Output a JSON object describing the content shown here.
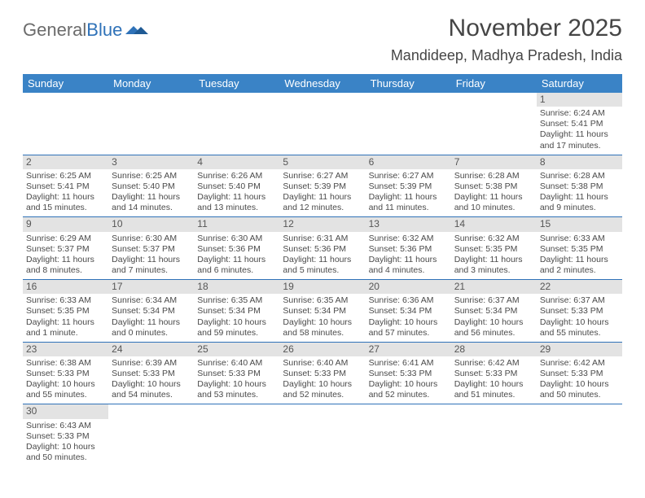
{
  "brand": {
    "first": "General",
    "second": "Blue"
  },
  "title": "November 2025",
  "location": "Mandideep, Madhya Pradesh, India",
  "colors": {
    "header_bg": "#3a83c6",
    "header_text": "#ffffff",
    "cell_border": "#2f72b8",
    "daynum_bg": "#e3e3e3",
    "body_text": "#4a4a4a",
    "title_text": "#454545",
    "brand_second": "#2f72b8"
  },
  "dayHeaders": [
    "Sunday",
    "Monday",
    "Tuesday",
    "Wednesday",
    "Thursday",
    "Friday",
    "Saturday"
  ],
  "weeks": [
    [
      {
        "n": "",
        "sr": "",
        "ss": "",
        "dl": ""
      },
      {
        "n": "",
        "sr": "",
        "ss": "",
        "dl": ""
      },
      {
        "n": "",
        "sr": "",
        "ss": "",
        "dl": ""
      },
      {
        "n": "",
        "sr": "",
        "ss": "",
        "dl": ""
      },
      {
        "n": "",
        "sr": "",
        "ss": "",
        "dl": ""
      },
      {
        "n": "",
        "sr": "",
        "ss": "",
        "dl": ""
      },
      {
        "n": "1",
        "sr": "Sunrise: 6:24 AM",
        "ss": "Sunset: 5:41 PM",
        "dl": "Daylight: 11 hours and 17 minutes."
      }
    ],
    [
      {
        "n": "2",
        "sr": "Sunrise: 6:25 AM",
        "ss": "Sunset: 5:41 PM",
        "dl": "Daylight: 11 hours and 15 minutes."
      },
      {
        "n": "3",
        "sr": "Sunrise: 6:25 AM",
        "ss": "Sunset: 5:40 PM",
        "dl": "Daylight: 11 hours and 14 minutes."
      },
      {
        "n": "4",
        "sr": "Sunrise: 6:26 AM",
        "ss": "Sunset: 5:40 PM",
        "dl": "Daylight: 11 hours and 13 minutes."
      },
      {
        "n": "5",
        "sr": "Sunrise: 6:27 AM",
        "ss": "Sunset: 5:39 PM",
        "dl": "Daylight: 11 hours and 12 minutes."
      },
      {
        "n": "6",
        "sr": "Sunrise: 6:27 AM",
        "ss": "Sunset: 5:39 PM",
        "dl": "Daylight: 11 hours and 11 minutes."
      },
      {
        "n": "7",
        "sr": "Sunrise: 6:28 AM",
        "ss": "Sunset: 5:38 PM",
        "dl": "Daylight: 11 hours and 10 minutes."
      },
      {
        "n": "8",
        "sr": "Sunrise: 6:28 AM",
        "ss": "Sunset: 5:38 PM",
        "dl": "Daylight: 11 hours and 9 minutes."
      }
    ],
    [
      {
        "n": "9",
        "sr": "Sunrise: 6:29 AM",
        "ss": "Sunset: 5:37 PM",
        "dl": "Daylight: 11 hours and 8 minutes."
      },
      {
        "n": "10",
        "sr": "Sunrise: 6:30 AM",
        "ss": "Sunset: 5:37 PM",
        "dl": "Daylight: 11 hours and 7 minutes."
      },
      {
        "n": "11",
        "sr": "Sunrise: 6:30 AM",
        "ss": "Sunset: 5:36 PM",
        "dl": "Daylight: 11 hours and 6 minutes."
      },
      {
        "n": "12",
        "sr": "Sunrise: 6:31 AM",
        "ss": "Sunset: 5:36 PM",
        "dl": "Daylight: 11 hours and 5 minutes."
      },
      {
        "n": "13",
        "sr": "Sunrise: 6:32 AM",
        "ss": "Sunset: 5:36 PM",
        "dl": "Daylight: 11 hours and 4 minutes."
      },
      {
        "n": "14",
        "sr": "Sunrise: 6:32 AM",
        "ss": "Sunset: 5:35 PM",
        "dl": "Daylight: 11 hours and 3 minutes."
      },
      {
        "n": "15",
        "sr": "Sunrise: 6:33 AM",
        "ss": "Sunset: 5:35 PM",
        "dl": "Daylight: 11 hours and 2 minutes."
      }
    ],
    [
      {
        "n": "16",
        "sr": "Sunrise: 6:33 AM",
        "ss": "Sunset: 5:35 PM",
        "dl": "Daylight: 11 hours and 1 minute."
      },
      {
        "n": "17",
        "sr": "Sunrise: 6:34 AM",
        "ss": "Sunset: 5:34 PM",
        "dl": "Daylight: 11 hours and 0 minutes."
      },
      {
        "n": "18",
        "sr": "Sunrise: 6:35 AM",
        "ss": "Sunset: 5:34 PM",
        "dl": "Daylight: 10 hours and 59 minutes."
      },
      {
        "n": "19",
        "sr": "Sunrise: 6:35 AM",
        "ss": "Sunset: 5:34 PM",
        "dl": "Daylight: 10 hours and 58 minutes."
      },
      {
        "n": "20",
        "sr": "Sunrise: 6:36 AM",
        "ss": "Sunset: 5:34 PM",
        "dl": "Daylight: 10 hours and 57 minutes."
      },
      {
        "n": "21",
        "sr": "Sunrise: 6:37 AM",
        "ss": "Sunset: 5:34 PM",
        "dl": "Daylight: 10 hours and 56 minutes."
      },
      {
        "n": "22",
        "sr": "Sunrise: 6:37 AM",
        "ss": "Sunset: 5:33 PM",
        "dl": "Daylight: 10 hours and 55 minutes."
      }
    ],
    [
      {
        "n": "23",
        "sr": "Sunrise: 6:38 AM",
        "ss": "Sunset: 5:33 PM",
        "dl": "Daylight: 10 hours and 55 minutes."
      },
      {
        "n": "24",
        "sr": "Sunrise: 6:39 AM",
        "ss": "Sunset: 5:33 PM",
        "dl": "Daylight: 10 hours and 54 minutes."
      },
      {
        "n": "25",
        "sr": "Sunrise: 6:40 AM",
        "ss": "Sunset: 5:33 PM",
        "dl": "Daylight: 10 hours and 53 minutes."
      },
      {
        "n": "26",
        "sr": "Sunrise: 6:40 AM",
        "ss": "Sunset: 5:33 PM",
        "dl": "Daylight: 10 hours and 52 minutes."
      },
      {
        "n": "27",
        "sr": "Sunrise: 6:41 AM",
        "ss": "Sunset: 5:33 PM",
        "dl": "Daylight: 10 hours and 52 minutes."
      },
      {
        "n": "28",
        "sr": "Sunrise: 6:42 AM",
        "ss": "Sunset: 5:33 PM",
        "dl": "Daylight: 10 hours and 51 minutes."
      },
      {
        "n": "29",
        "sr": "Sunrise: 6:42 AM",
        "ss": "Sunset: 5:33 PM",
        "dl": "Daylight: 10 hours and 50 minutes."
      }
    ],
    [
      {
        "n": "30",
        "sr": "Sunrise: 6:43 AM",
        "ss": "Sunset: 5:33 PM",
        "dl": "Daylight: 10 hours and 50 minutes."
      },
      {
        "n": "",
        "sr": "",
        "ss": "",
        "dl": ""
      },
      {
        "n": "",
        "sr": "",
        "ss": "",
        "dl": ""
      },
      {
        "n": "",
        "sr": "",
        "ss": "",
        "dl": ""
      },
      {
        "n": "",
        "sr": "",
        "ss": "",
        "dl": ""
      },
      {
        "n": "",
        "sr": "",
        "ss": "",
        "dl": ""
      },
      {
        "n": "",
        "sr": "",
        "ss": "",
        "dl": ""
      }
    ]
  ]
}
